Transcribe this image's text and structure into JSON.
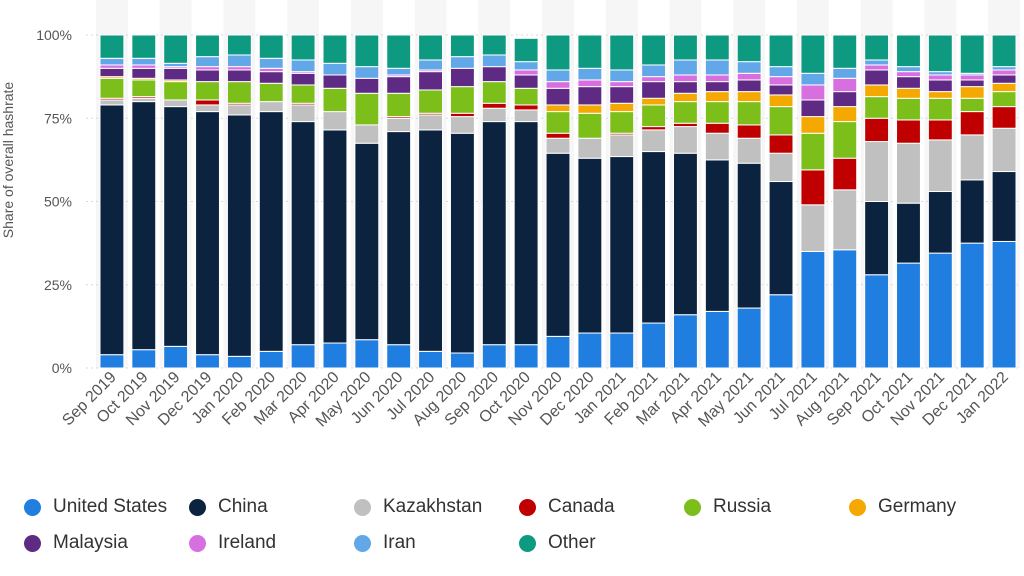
{
  "chart_data": {
    "type": "bar",
    "stacked": true,
    "percent": true,
    "ylabel": "Share of overall hashrate",
    "xlabel": "",
    "ylim": [
      0,
      100
    ],
    "yticks": [
      "0%",
      "25%",
      "50%",
      "75%",
      "100%"
    ],
    "grid": true,
    "legend_position": "bottom",
    "categories": [
      "Sep 2019",
      "Oct 2019",
      "Nov 2019",
      "Dec 2019",
      "Jan 2020",
      "Feb 2020",
      "Mar 2020",
      "Apr 2020",
      "May 2020",
      "Jun 2020",
      "Jul 2020",
      "Aug 2020",
      "Sep 2020",
      "Oct 2020",
      "Nov 2020",
      "Dec 2020",
      "Jan 2021",
      "Feb 2021",
      "Mar 2021",
      "Apr 2021",
      "May 2021",
      "Jun 2021",
      "Jul 2021",
      "Aug 2021",
      "Sep 2021",
      "Oct 2021",
      "Nov 2021",
      "Dec 2021",
      "Jan 2022"
    ],
    "series": [
      {
        "name": "United States",
        "color": "#1f7ee0",
        "values": [
          4,
          5.5,
          6.5,
          4,
          3.5,
          5,
          7,
          7.5,
          8.5,
          7,
          5,
          4.5,
          7,
          7,
          9.5,
          10.5,
          10.5,
          13.5,
          16,
          17,
          18,
          22,
          35,
          35.5,
          28,
          31.5,
          34.5,
          37.5,
          38
        ]
      },
      {
        "name": "China",
        "color": "#0c2340",
        "values": [
          75,
          74.5,
          72,
          73,
          72.5,
          72,
          67,
          64,
          59,
          64,
          66.5,
          66,
          67,
          67,
          55,
          52.5,
          53,
          51.5,
          48.5,
          45.5,
          43.5,
          34,
          0,
          0,
          22,
          18,
          18.5,
          19,
          21
        ]
      },
      {
        "name": "Kazakhstan",
        "color": "#c0c0c0",
        "values": [
          1.5,
          1,
          2,
          2,
          3,
          3,
          5,
          5.5,
          5.5,
          4,
          4.5,
          5,
          4,
          3.5,
          4.5,
          6,
          6.5,
          6.5,
          8,
          8,
          7.5,
          8.5,
          14,
          18,
          18,
          18,
          15.5,
          13.5,
          13
        ]
      },
      {
        "name": "Canada",
        "color": "#c00000",
        "values": [
          0.5,
          0.5,
          0,
          1.5,
          0.5,
          0,
          0.5,
          0,
          0,
          0.5,
          0.5,
          1,
          1.5,
          1.5,
          1.5,
          0,
          0.5,
          1,
          1,
          3,
          4,
          5.5,
          10.5,
          9.5,
          7,
          7,
          6,
          7,
          6.5
        ]
      },
      {
        "name": "Russia",
        "color": "#7cbf1a",
        "values": [
          6,
          5,
          5.5,
          5.5,
          6.5,
          5.5,
          5.5,
          7,
          9.5,
          7,
          7,
          8,
          6.5,
          5,
          6.5,
          7.5,
          6.5,
          6.5,
          6.5,
          6.5,
          7,
          8.5,
          11,
          11,
          6.5,
          6.5,
          6.5,
          4,
          4.5
        ]
      },
      {
        "name": "Germany",
        "color": "#f5a800",
        "values": [
          0.5,
          0.5,
          0.5,
          0,
          0,
          0,
          0,
          0,
          0,
          0,
          0,
          0,
          0,
          0,
          2,
          2.5,
          2.5,
          2,
          2.5,
          3,
          3,
          3.5,
          5,
          4.5,
          3.5,
          3,
          2,
          3.5,
          2.5
        ]
      },
      {
        "name": "Malaysia",
        "color": "#5e2a84",
        "values": [
          2.5,
          3,
          3.5,
          3.5,
          3.5,
          3.5,
          3.5,
          4,
          4.5,
          5,
          5.5,
          5.5,
          4.5,
          4,
          5,
          5.5,
          5,
          5,
          3.5,
          3,
          3.5,
          3,
          5,
          4.5,
          4.5,
          3.5,
          3.5,
          2,
          2.5
        ]
      },
      {
        "name": "Ireland",
        "color": "#d86fe0",
        "values": [
          1,
          1,
          0.5,
          1,
          1,
          1,
          0.5,
          0,
          0,
          0.5,
          0.5,
          0,
          0,
          1.5,
          2,
          2,
          1.5,
          1.5,
          2,
          2,
          2,
          2.5,
          4.5,
          4,
          1.5,
          1.5,
          1.5,
          1.5,
          1.5
        ]
      },
      {
        "name": "Iran",
        "color": "#62a8e8",
        "values": [
          2,
          2,
          1,
          3,
          3.5,
          3,
          3.5,
          3.5,
          3.5,
          2,
          3,
          3.5,
          3.5,
          2.5,
          3.5,
          3.5,
          3.5,
          3.5,
          4.5,
          4.5,
          3.5,
          3,
          3.5,
          3,
          1.5,
          1.5,
          1,
          0.5,
          1
        ]
      },
      {
        "name": "Other",
        "color": "#0e9a80",
        "values": [
          7,
          7,
          8.5,
          6.5,
          6,
          7,
          7.5,
          8.5,
          9.5,
          10,
          7.5,
          6.5,
          6,
          7,
          10.5,
          10,
          10.5,
          9,
          7.5,
          7.5,
          8,
          9.5,
          11.5,
          10,
          7.5,
          9.5,
          11,
          11.5,
          9.5
        ]
      }
    ]
  }
}
